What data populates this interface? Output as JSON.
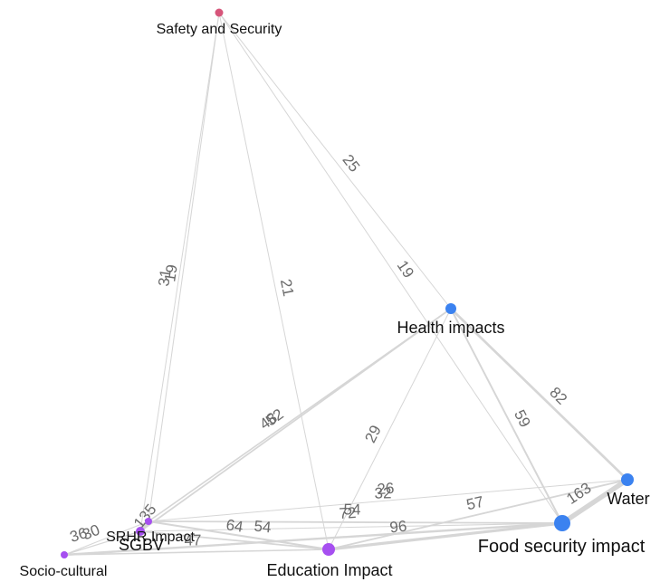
{
  "colors": {
    "red_node": "#d6557a",
    "blue_node": "#3b82f0",
    "purple_node": "#a64ff0",
    "edge": "#d6d6d6"
  },
  "nodes": [
    {
      "id": "safety",
      "label": "Safety and Security",
      "color": "#d6557a"
    },
    {
      "id": "health",
      "label": "Health impacts",
      "color": "#3b82f0"
    },
    {
      "id": "water",
      "label": "Water",
      "color": "#3b82f0"
    },
    {
      "id": "food",
      "label": "Food security impact",
      "color": "#3b82f0"
    },
    {
      "id": "education",
      "label": "Education Impact",
      "color": "#a64ff0"
    },
    {
      "id": "srhr",
      "label": "SRHR Impact",
      "color": "#a64ff0"
    },
    {
      "id": "sgbv",
      "label": "SGBV",
      "color": "#a64ff0"
    },
    {
      "id": "sociocultural",
      "label": "Socio-cultural",
      "color": "#a64ff0"
    }
  ],
  "edges": [
    {
      "from": "safety",
      "to": "health",
      "weight": "25"
    },
    {
      "from": "safety",
      "to": "food",
      "weight": "19"
    },
    {
      "from": "safety",
      "to": "education",
      "weight": "21"
    },
    {
      "from": "safety",
      "to": "srhr",
      "weight": "31"
    },
    {
      "from": "safety",
      "to": "sgbv",
      "weight": "19"
    },
    {
      "from": "health",
      "to": "water",
      "weight": "82"
    },
    {
      "from": "health",
      "to": "food",
      "weight": "59"
    },
    {
      "from": "health",
      "to": "education",
      "weight": "29"
    },
    {
      "from": "health",
      "to": "srhr",
      "weight": "48"
    },
    {
      "from": "health",
      "to": "sgbv",
      "weight": "52"
    },
    {
      "from": "water",
      "to": "food",
      "weight": "163"
    },
    {
      "from": "water",
      "to": "srhr",
      "weight": "26"
    },
    {
      "from": "water",
      "to": "education",
      "weight": "57"
    },
    {
      "from": "food",
      "to": "srhr",
      "weight": "54"
    },
    {
      "from": "food",
      "to": "sgbv",
      "weight": "32"
    },
    {
      "from": "food",
      "to": "education",
      "weight": "96"
    },
    {
      "from": "education",
      "to": "srhr",
      "weight": "64"
    },
    {
      "from": "education",
      "to": "sgbv",
      "weight": "54"
    },
    {
      "from": "education",
      "to": "sociocultural",
      "weight": "47"
    },
    {
      "from": "srhr",
      "to": "sgbv",
      "weight": "135"
    },
    {
      "from": "sgbv",
      "to": "sociocultural",
      "weight": "36"
    },
    {
      "from": "srhr",
      "to": "sociocultural",
      "weight": "30"
    },
    {
      "from": "sociocultural",
      "to": "food",
      "weight": "72"
    }
  ]
}
